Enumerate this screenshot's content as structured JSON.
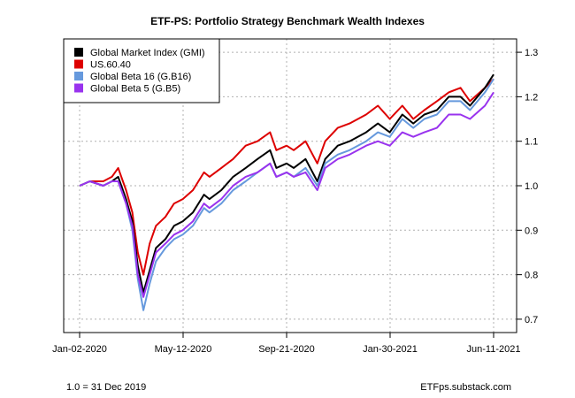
{
  "chart_data": {
    "type": "line",
    "title": "ETF-PS: Portfolio Strategy Benchmark Wealth Indexes",
    "xlabel": "",
    "ylabel": "",
    "x_ticks": [
      "Jan-02-2020",
      "May-12-2020",
      "Sep-21-2020",
      "Jan-30-2021",
      "Jun-11-2021"
    ],
    "y_ticks": [
      0.7,
      0.8,
      0.9,
      1.0,
      1.1,
      1.2,
      1.3
    ],
    "xlim": [
      "2020-01-02",
      "2021-06-11"
    ],
    "ylim": [
      0.67,
      1.33
    ],
    "grid": true,
    "legend_position": "top-left",
    "x": [
      "2020-01-02",
      "2020-01-15",
      "2020-02-01",
      "2020-02-12",
      "2020-02-20",
      "2020-03-01",
      "2020-03-09",
      "2020-03-16",
      "2020-03-23",
      "2020-03-31",
      "2020-04-08",
      "2020-04-20",
      "2020-05-01",
      "2020-05-12",
      "2020-05-25",
      "2020-06-08",
      "2020-06-15",
      "2020-06-30",
      "2020-07-15",
      "2020-07-31",
      "2020-08-15",
      "2020-08-31",
      "2020-09-08",
      "2020-09-21",
      "2020-09-30",
      "2020-10-15",
      "2020-10-30",
      "2020-11-09",
      "2020-11-25",
      "2020-12-10",
      "2020-12-31",
      "2021-01-15",
      "2021-01-30",
      "2021-02-15",
      "2021-03-01",
      "2021-03-15",
      "2021-03-31",
      "2021-04-15",
      "2021-04-30",
      "2021-05-12",
      "2021-05-31",
      "2021-06-11"
    ],
    "series": [
      {
        "name": "Global Market Index (GMI)",
        "color": "#000000",
        "values": [
          1.0,
          1.01,
          1.0,
          1.01,
          1.02,
          0.97,
          0.92,
          0.82,
          0.76,
          0.81,
          0.86,
          0.88,
          0.91,
          0.92,
          0.94,
          0.98,
          0.97,
          0.99,
          1.02,
          1.04,
          1.06,
          1.08,
          1.04,
          1.05,
          1.04,
          1.06,
          1.01,
          1.06,
          1.09,
          1.1,
          1.12,
          1.14,
          1.12,
          1.16,
          1.14,
          1.16,
          1.17,
          1.2,
          1.2,
          1.18,
          1.22,
          1.25
        ]
      },
      {
        "name": "US.60.40",
        "color": "#dd0000",
        "values": [
          1.0,
          1.01,
          1.01,
          1.02,
          1.04,
          0.99,
          0.94,
          0.85,
          0.8,
          0.87,
          0.91,
          0.93,
          0.96,
          0.97,
          0.99,
          1.03,
          1.02,
          1.04,
          1.06,
          1.09,
          1.1,
          1.12,
          1.08,
          1.09,
          1.08,
          1.1,
          1.05,
          1.1,
          1.13,
          1.14,
          1.16,
          1.18,
          1.15,
          1.18,
          1.15,
          1.17,
          1.19,
          1.21,
          1.22,
          1.19,
          1.22,
          1.24
        ]
      },
      {
        "name": "Global Beta 16 (G.B16)",
        "color": "#6699dd",
        "values": [
          1.0,
          1.01,
          1.0,
          1.01,
          1.01,
          0.96,
          0.9,
          0.79,
          0.72,
          0.78,
          0.83,
          0.86,
          0.88,
          0.89,
          0.91,
          0.95,
          0.94,
          0.96,
          0.99,
          1.01,
          1.03,
          1.05,
          1.02,
          1.03,
          1.02,
          1.04,
          1.0,
          1.05,
          1.07,
          1.08,
          1.1,
          1.12,
          1.11,
          1.15,
          1.13,
          1.15,
          1.16,
          1.19,
          1.19,
          1.17,
          1.21,
          1.24
        ]
      },
      {
        "name": "Global Beta 5 (G.B5)",
        "color": "#9933ee",
        "values": [
          1.0,
          1.01,
          1.0,
          1.01,
          1.01,
          0.96,
          0.91,
          0.8,
          0.75,
          0.8,
          0.85,
          0.87,
          0.89,
          0.9,
          0.92,
          0.96,
          0.95,
          0.97,
          1.0,
          1.02,
          1.03,
          1.05,
          1.02,
          1.03,
          1.02,
          1.03,
          0.99,
          1.04,
          1.06,
          1.07,
          1.09,
          1.1,
          1.09,
          1.12,
          1.11,
          1.12,
          1.13,
          1.16,
          1.16,
          1.15,
          1.18,
          1.21
        ]
      }
    ]
  },
  "footer": {
    "left": "1.0 = 31 Dec 2019",
    "right": "ETFps.substack.com"
  }
}
